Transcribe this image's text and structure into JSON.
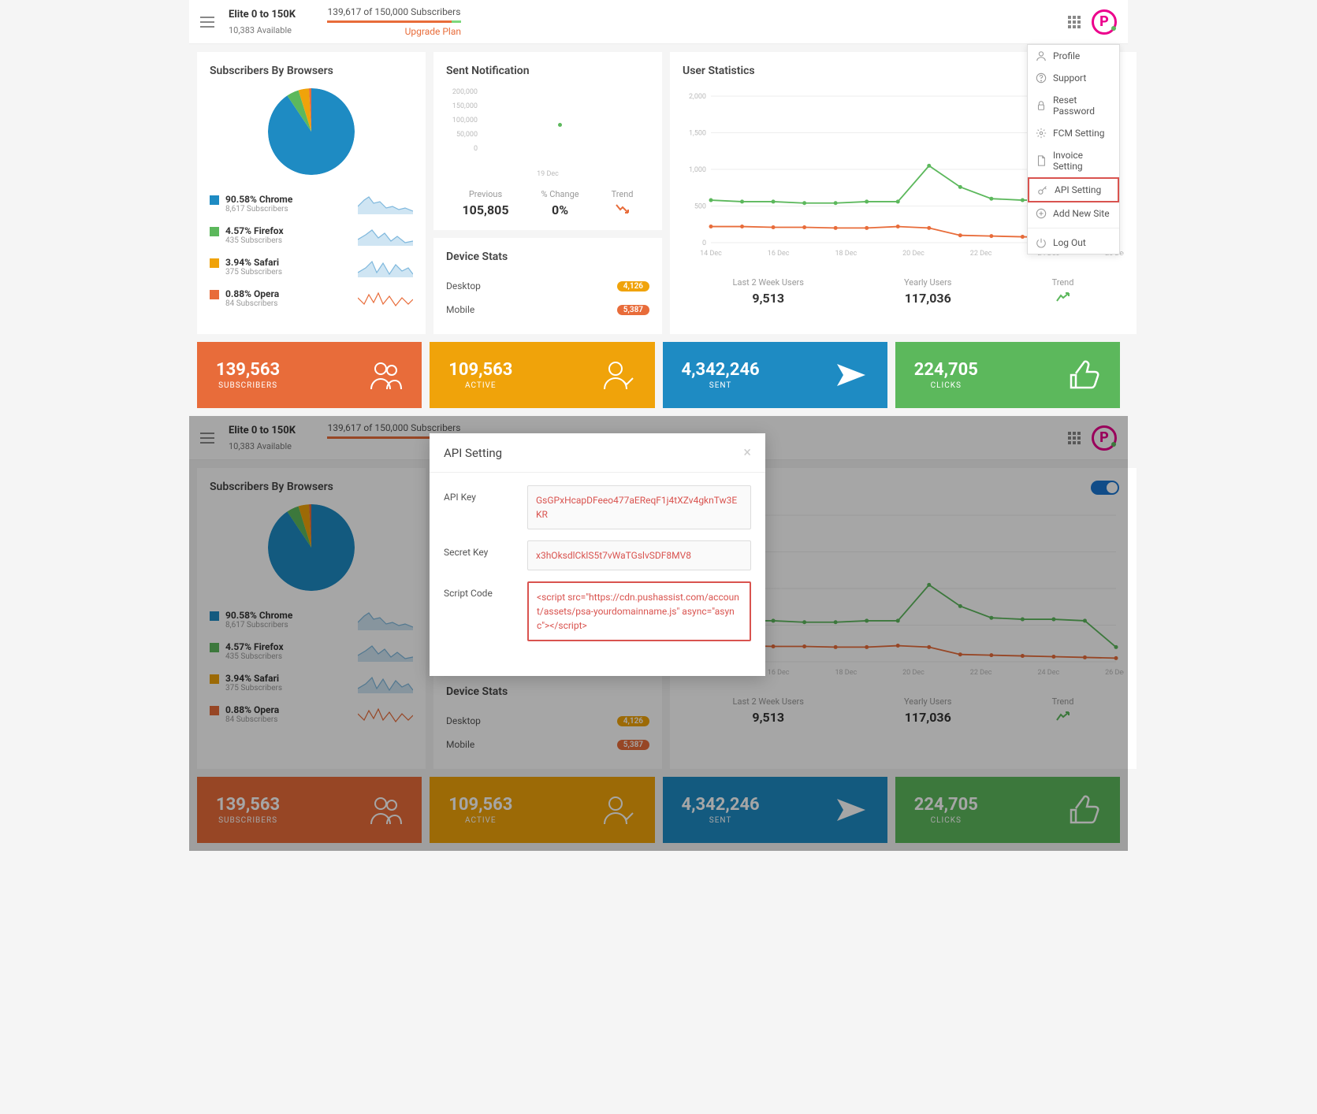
{
  "topbar": {
    "plan_title": "Elite 0 to 150K",
    "available": "10,383 Available",
    "sub_count": "139,617 of 150,000 Subscribers",
    "upgrade": "Upgrade Plan",
    "progress_pct": 93
  },
  "dropdown": {
    "items": [
      {
        "label": "Profile",
        "icon": "user"
      },
      {
        "label": "Support",
        "icon": "help"
      },
      {
        "label": "Reset Password",
        "icon": "lock"
      },
      {
        "label": "FCM Setting",
        "icon": "gear"
      },
      {
        "label": "Invoice Setting",
        "icon": "doc"
      },
      {
        "label": "API Setting",
        "icon": "key",
        "highlighted": true
      },
      {
        "label": "Add New Site",
        "icon": "plus"
      }
    ],
    "logout": "Log Out"
  },
  "browsers_card": {
    "title": "Subscribers By Browsers",
    "pie_colors": [
      "#1e8bc3",
      "#5cb85c",
      "#f0a30a",
      "#e86c3a"
    ],
    "pie_values": [
      90.58,
      4.57,
      3.94,
      0.88
    ],
    "items": [
      {
        "pct": "90.58% Chrome",
        "sub": "8,617 Subscribers",
        "color": "#1e8bc3",
        "spark_fill": "#cfe5f3",
        "spark_stroke": "#7fb8dd"
      },
      {
        "pct": "4.57% Firefox",
        "sub": "435 Subscribers",
        "color": "#5cb85c",
        "spark_fill": "#cfe5f3",
        "spark_stroke": "#7fb8dd"
      },
      {
        "pct": "3.94% Safari",
        "sub": "375 Subscribers",
        "color": "#f0a30a",
        "spark_fill": "#cfe5f3",
        "spark_stroke": "#7fb8dd"
      },
      {
        "pct": "0.88% Opera",
        "sub": "84 Subscribers",
        "color": "#e86c3a",
        "spark_fill": "none",
        "spark_stroke": "#e86c3a"
      }
    ]
  },
  "sent_card": {
    "title": "Sent Notification",
    "y_labels": [
      "200,000",
      "150,000",
      "100,000",
      "50,000",
      "0"
    ],
    "x_label": "19 Dec",
    "dot_value": 105805,
    "stats": {
      "previous_lbl": "Previous",
      "previous_val": "105,805",
      "change_lbl": "% Change",
      "change_val": "0%",
      "trend_lbl": "Trend"
    }
  },
  "device_card": {
    "title": "Device Stats",
    "rows": [
      {
        "label": "Desktop",
        "badge": "4,126",
        "badge_color": "#f0a30a"
      },
      {
        "label": "Mobile",
        "badge": "5,387",
        "badge_color": "#e86c3a"
      }
    ]
  },
  "user_stats": {
    "title": "User Statistics",
    "y_ticks": [
      "2,000",
      "1,500",
      "1,000",
      "500",
      "0"
    ],
    "x_ticks": [
      "14 Dec",
      "16 Dec",
      "18 Dec",
      "20 Dec",
      "22 Dec",
      "24 Dec",
      "26 Dec"
    ],
    "green_series": [
      580,
      560,
      560,
      540,
      540,
      560,
      560,
      1050,
      760,
      600,
      580,
      580,
      560,
      200
    ],
    "red_series": [
      220,
      220,
      210,
      210,
      200,
      200,
      220,
      200,
      100,
      90,
      80,
      70,
      60,
      50
    ],
    "green_color": "#5cb85c",
    "red_color": "#e86c3a",
    "grid_color": "#eeeeee",
    "stats": {
      "last2_lbl": "Last 2 Week Users",
      "last2_val": "9,513",
      "yearly_lbl": "Yearly Users",
      "yearly_val": "117,036",
      "trend_lbl": "Trend"
    }
  },
  "tiles": [
    {
      "num": "139,563",
      "lbl": "SUBSCRIBERS",
      "color": "#e86c3a",
      "icon": "users"
    },
    {
      "num": "109,563",
      "lbl": "ACTIVE",
      "color": "#f0a30a",
      "icon": "user-check"
    },
    {
      "num": "4,342,246",
      "lbl": "SENT",
      "color": "#1e8bc3",
      "icon": "send"
    },
    {
      "num": "224,705",
      "lbl": "CLICKS",
      "color": "#5cb85c",
      "icon": "thumb"
    }
  ],
  "modal": {
    "title": "API Setting",
    "api_key_lbl": "API Key",
    "api_key_val": "GsGPxHcapDFeeo477aEReqF1j4tXZv4gknTw3EKR",
    "secret_lbl": "Secret Key",
    "secret_val": "x3hOksdlCklS5t7vWaTGslvSDF8MV8",
    "script_lbl": "Script Code",
    "script_val": "<script src=\"https://cdn.pushassist.com/account/assets/psa-yourdomainname.js\" async=\"async\"></script>"
  }
}
